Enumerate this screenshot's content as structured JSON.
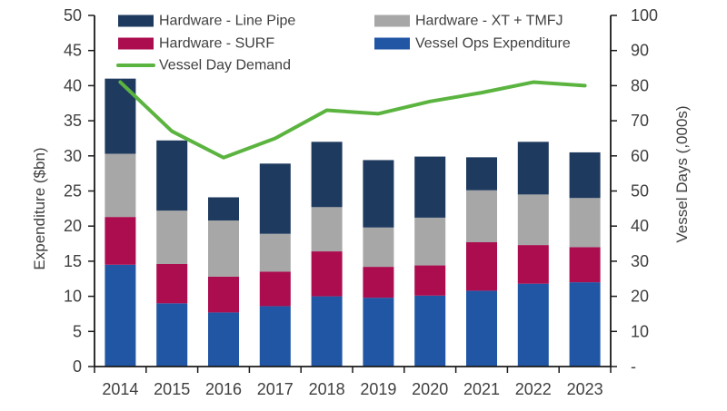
{
  "chart_data": {
    "type": "bar",
    "subtype": "stacked-bar-with-line",
    "title": "",
    "categories": [
      "2014",
      "2015",
      "2016",
      "2017",
      "2018",
      "2019",
      "2020",
      "2021",
      "2022",
      "2023"
    ],
    "bar_series": [
      {
        "key": "vessel-ops-expenditure",
        "name": "Vessel Ops Expenditure",
        "color": "#2156A5",
        "values": [
          14.5,
          9.0,
          7.7,
          8.6,
          10.0,
          9.8,
          10.1,
          10.8,
          11.8,
          12.0
        ]
      },
      {
        "key": "hardware-surf",
        "name": "Hardware - SURF",
        "color": "#AB0D4F",
        "values": [
          6.8,
          5.6,
          5.1,
          4.9,
          6.4,
          4.4,
          4.3,
          6.9,
          5.5,
          5.0
        ]
      },
      {
        "key": "hardware-xt-tmfj",
        "name": "Hardware - XT + TMFJ",
        "color": "#A7A7A7",
        "values": [
          9.0,
          7.6,
          8.0,
          5.4,
          6.3,
          5.6,
          6.8,
          7.4,
          7.2,
          7.0
        ]
      },
      {
        "key": "hardware-line-pipe",
        "name": "Hardware - Line Pipe",
        "color": "#1F3A5F",
        "values": [
          10.7,
          10.0,
          3.3,
          10.0,
          9.3,
          9.6,
          8.7,
          4.7,
          7.5,
          6.5
        ]
      }
    ],
    "line_series": {
      "key": "vessel-day-demand",
      "name": "Vessel Day Demand",
      "color": "#5BB43F",
      "axis": "right",
      "values": [
        81,
        67,
        59.5,
        65,
        73,
        72,
        75.5,
        78,
        81,
        80
      ]
    },
    "left_axis": {
      "label": "Expenditure ($bn)",
      "min": 0,
      "max": 50,
      "step": 5
    },
    "right_axis": {
      "label": "Vessel Days (,000s)",
      "min": 0,
      "max": 100,
      "step": 10,
      "zero_label": "-"
    },
    "legend": [
      {
        "label": "Hardware - Line Pipe",
        "swatch": "box",
        "color": "#1F3A5F"
      },
      {
        "label": "Hardware - SURF",
        "swatch": "box",
        "color": "#AB0D4F"
      },
      {
        "label": "Vessel Day Demand",
        "swatch": "line",
        "color": "#5BB43F"
      },
      {
        "label": "Hardware - XT + TMFJ",
        "swatch": "box",
        "color": "#A7A7A7"
      },
      {
        "label": "Vessel Ops Expenditure",
        "swatch": "box",
        "color": "#2156A5"
      }
    ],
    "legend_position": "top",
    "grid": false,
    "axis_color": "#1a1a1a"
  }
}
